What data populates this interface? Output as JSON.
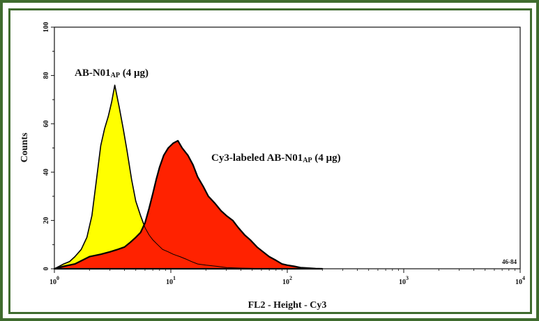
{
  "chart_data": {
    "type": "area",
    "title": "",
    "xlabel": "FL2 - Height - Cy3",
    "ylabel": "Counts",
    "xscale": "log",
    "xlim": [
      1,
      10000
    ],
    "ylim": [
      0,
      100
    ],
    "x_ticks": [
      {
        "value": 1,
        "base": "10",
        "exp": "0"
      },
      {
        "value": 10,
        "base": "10",
        "exp": "1"
      },
      {
        "value": 100,
        "base": "10",
        "exp": "2"
      },
      {
        "value": 1000,
        "base": "10",
        "exp": "3"
      },
      {
        "value": 10000,
        "base": "10",
        "exp": "4"
      }
    ],
    "y_ticks": [
      0,
      20,
      40,
      60,
      80,
      100
    ],
    "corner_label": "46-84",
    "annotations": [
      {
        "main": "AB-N01",
        "sub": "AP",
        "tail": " (4 μg)",
        "series": 0
      },
      {
        "main": "Cy3-labeled AB-N01",
        "sub": "AP",
        "tail": " (4 μg)",
        "series": 1
      }
    ],
    "series": [
      {
        "fill": "#ffff00",
        "x": [
          1,
          1.1,
          1.2,
          1.35,
          1.5,
          1.7,
          1.9,
          2.1,
          2.3,
          2.5,
          2.7,
          2.9,
          3.1,
          3.3,
          3.6,
          3.9,
          4.2,
          4.6,
          5.0,
          5.5,
          6.0,
          6.5,
          7.0,
          7.7,
          8.5,
          9.5,
          10.5,
          12,
          13.5,
          15,
          17,
          20,
          25,
          30,
          40,
          60,
          100,
          200
        ],
        "y": [
          0,
          1,
          2,
          3,
          5,
          8,
          13,
          22,
          37,
          51,
          58,
          63,
          69,
          76,
          67,
          58,
          49,
          37,
          28,
          22,
          17,
          14,
          12,
          10,
          8,
          7,
          6,
          5,
          4,
          3,
          2,
          1.5,
          1,
          0.5,
          0.3,
          0.1,
          0,
          0
        ]
      },
      {
        "fill": "#ff2200",
        "x": [
          1,
          1.2,
          1.5,
          2,
          2.5,
          3,
          3.5,
          4,
          4.5,
          5,
          5.5,
          6,
          6.5,
          7,
          7.5,
          8,
          8.7,
          9.5,
          10.5,
          11.5,
          12.5,
          14,
          15.5,
          17,
          19,
          21,
          24,
          27,
          30,
          34,
          38,
          43,
          48,
          55,
          62,
          70,
          80,
          90,
          100,
          115,
          130,
          150,
          175,
          200
        ],
        "y": [
          0,
          1,
          2,
          5,
          6,
          7,
          8,
          9,
          11,
          13,
          15,
          19,
          25,
          31,
          37,
          42,
          47,
          50,
          52,
          53,
          50,
          47,
          43,
          38,
          34,
          30,
          27,
          24,
          22,
          20,
          17,
          14,
          12,
          9,
          7,
          5,
          3.5,
          2,
          1.5,
          1,
          0.5,
          0.3,
          0.1,
          0
        ]
      }
    ]
  }
}
